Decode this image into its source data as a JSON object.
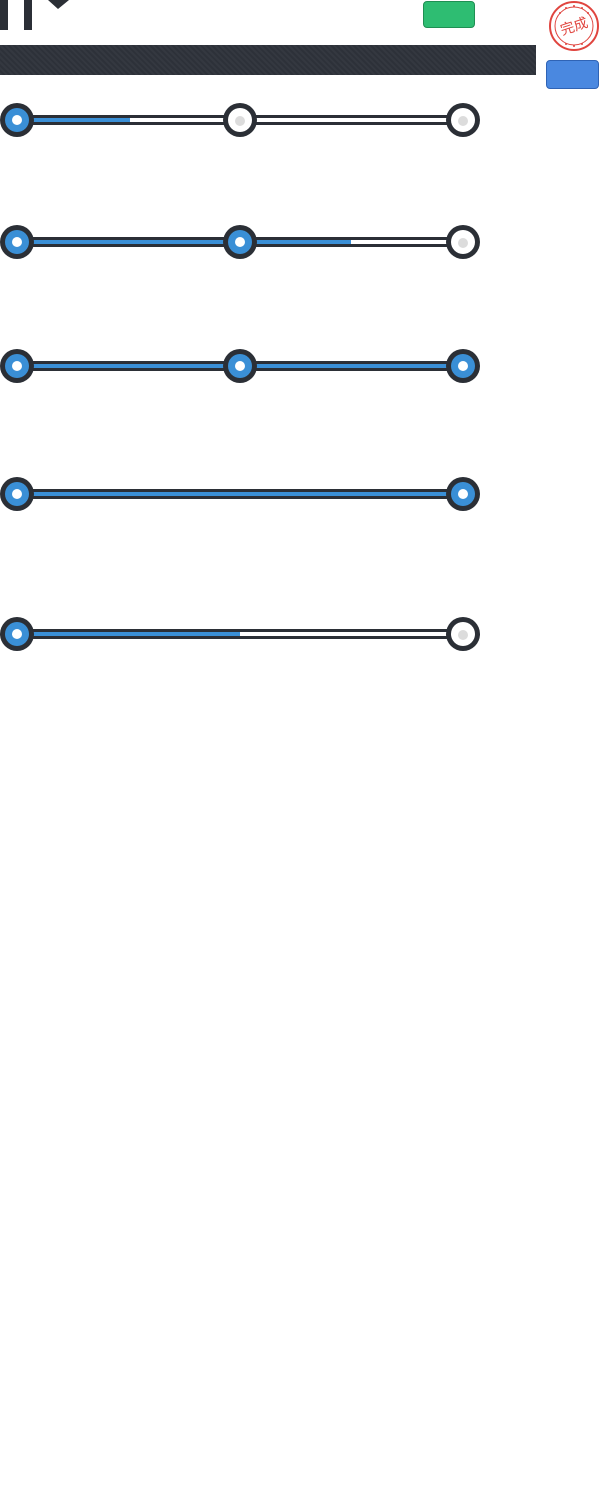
{
  "header": {
    "icons": {
      "corner": "pause-chevron-icon",
      "stamp": "complete-seal-icon"
    },
    "stamp_text": "完成",
    "colors": {
      "green": "#2ebd72",
      "blue": "#4a88e0",
      "banner": "#2d3139"
    }
  },
  "trackers": [
    {
      "progress": 0.25,
      "steps": [
        {
          "state": "done"
        },
        {
          "state": "pending"
        },
        {
          "state": "pending"
        }
      ]
    },
    {
      "progress": 0.75,
      "steps": [
        {
          "state": "done"
        },
        {
          "state": "done"
        },
        {
          "state": "pending"
        }
      ]
    },
    {
      "progress": 1.0,
      "steps": [
        {
          "state": "done"
        },
        {
          "state": "done"
        },
        {
          "state": "done"
        }
      ]
    },
    {
      "progress": 1.0,
      "steps": [
        {
          "state": "done"
        },
        {
          "state": "done"
        }
      ]
    },
    {
      "progress": 0.5,
      "steps": [
        {
          "state": "done"
        },
        {
          "state": "pending"
        }
      ]
    }
  ],
  "colors": {
    "accent": "#3a8fd6",
    "track": "#2b2f36",
    "empty": "#ffffff"
  }
}
